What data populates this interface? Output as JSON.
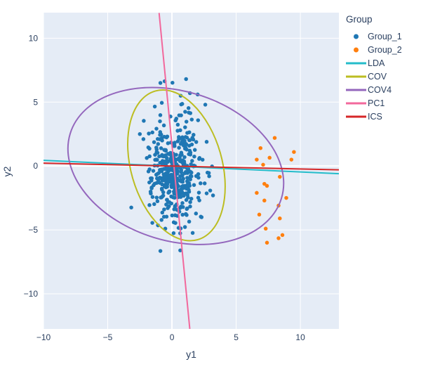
{
  "figure": {
    "background": "#ffffff",
    "plot_background": "#e5ecf6",
    "grid_color": "#ffffff",
    "text_color": "#2a3f5f"
  },
  "legend": {
    "title": "Group",
    "items": [
      {
        "label": "Group_1",
        "symbol": "marker",
        "color": "#1f77b4"
      },
      {
        "label": "Group_2",
        "symbol": "marker",
        "color": "#ff7f0e"
      },
      {
        "label": "LDA",
        "symbol": "line",
        "color": "#24bcca"
      },
      {
        "label": "COV",
        "symbol": "line",
        "color": "#bcbd22"
      },
      {
        "label": "COV4",
        "symbol": "line",
        "color": "#9467bd"
      },
      {
        "label": "PC1",
        "symbol": "line",
        "color": "#f2689c"
      },
      {
        "label": "ICS",
        "symbol": "line",
        "color": "#d62728"
      }
    ]
  },
  "chart_data": {
    "type": "scatter",
    "title": "",
    "xlabel": "y1",
    "ylabel": "y2",
    "xlim": [
      -10,
      13
    ],
    "ylim": [
      -12.75,
      12
    ],
    "grid": true,
    "zerolines": true,
    "legend_position": "top-right",
    "x_ticks": {
      "values": [
        -10,
        -5,
        0,
        5,
        10
      ],
      "labels": [
        "−10",
        "−5",
        "0",
        "5",
        "10"
      ]
    },
    "y_ticks": {
      "values": [
        10,
        5,
        0,
        -5,
        -10
      ],
      "labels": [
        "10",
        "5",
        "0",
        "−5",
        "−10"
      ]
    },
    "series": [
      {
        "name": "Group_1",
        "color": "#1f77b4",
        "marker_radius": 2.75,
        "distribution": {
          "kind": "gaussian",
          "n": 430,
          "seed": 7,
          "mean": [
            0.25,
            -0.4
          ],
          "sd": [
            0.95,
            2.15
          ],
          "xrange": [
            -3.3,
            3.6
          ],
          "yrange": [
            -6.7,
            6.9
          ]
        },
        "outlier_points": [
          [
            -0.9,
            6.5
          ],
          [
            1.1,
            6.8
          ],
          [
            1.4,
            5.7
          ],
          [
            2.0,
            5.6
          ],
          [
            2.6,
            4.8
          ],
          [
            -0.9,
            -6.65
          ],
          [
            0.65,
            -6.6
          ],
          [
            3.2,
            -2.3
          ],
          [
            2.9,
            -0.8
          ],
          [
            -2.5,
            2.5
          ]
        ]
      },
      {
        "name": "Group_2",
        "color": "#ff7f0e",
        "marker_radius": 2.75,
        "points": [
          [
            8.0,
            2.2
          ],
          [
            6.9,
            1.4
          ],
          [
            9.5,
            1.1
          ],
          [
            9.3,
            0.5
          ],
          [
            7.6,
            0.65
          ],
          [
            6.6,
            0.5
          ],
          [
            7.1,
            0.1
          ],
          [
            8.4,
            -0.85
          ],
          [
            7.2,
            -1.4
          ],
          [
            7.4,
            -1.55
          ],
          [
            6.6,
            -2.1
          ],
          [
            8.9,
            -2.5
          ],
          [
            7.2,
            -2.7
          ],
          [
            8.3,
            -3.1
          ],
          [
            6.8,
            -3.8
          ],
          [
            8.4,
            -4.1
          ],
          [
            7.3,
            -4.9
          ],
          [
            8.6,
            -5.4
          ],
          [
            8.3,
            -5.65
          ],
          [
            7.4,
            -6.0
          ]
        ]
      }
    ],
    "lines": [
      {
        "name": "LDA",
        "color": "#24bcca",
        "width": 2,
        "points": [
          [
            -10,
            0.44
          ],
          [
            13,
            -0.6
          ]
        ]
      },
      {
        "name": "PC1",
        "color": "#f2689c",
        "width": 2,
        "points": [
          [
            -1.0,
            11.98
          ],
          [
            1.39,
            -12.75
          ]
        ]
      },
      {
        "name": "ICS",
        "color": "#d62728",
        "width": 2,
        "points": [
          [
            -10,
            0.22
          ],
          [
            13,
            -0.3
          ]
        ]
      }
    ],
    "ellipses": [
      {
        "name": "COV",
        "color": "#bcbd22",
        "width": 2,
        "center": [
          0.35,
          0.05
        ],
        "semi_x": 3.55,
        "semi_y": 6.05,
        "rotation_deg": 16
      },
      {
        "name": "COV4",
        "color": "#9467bd",
        "width": 2,
        "center": [
          0.3,
          0.0
        ],
        "semi_x": 8.6,
        "semi_y": 5.85,
        "rotation_deg": -17
      }
    ],
    "draw_order": [
      "Group_1",
      "Group_2",
      "LDA",
      "COV",
      "COV4",
      "PC1",
      "ICS"
    ]
  }
}
